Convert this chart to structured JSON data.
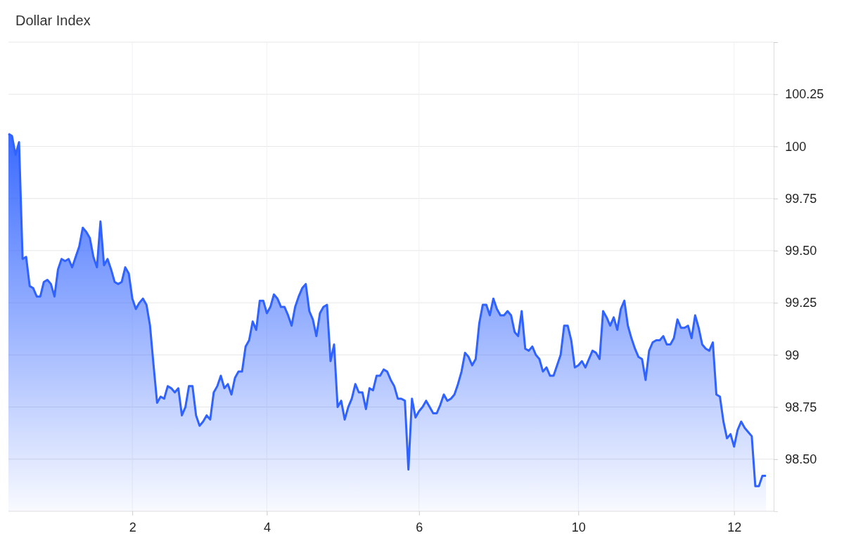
{
  "chart_data": {
    "type": "area",
    "title": "Dollar Index",
    "ylim": [
      98.25,
      100.5
    ],
    "categories": [
      null,
      null,
      null,
      null,
      null,
      null,
      null,
      null,
      null,
      null,
      null,
      null,
      null,
      null,
      null,
      null,
      null,
      null,
      null,
      null,
      null,
      null,
      null,
      null,
      null,
      null,
      null,
      null,
      null,
      null,
      null,
      null,
      null,
      null,
      null,
      "2",
      null,
      null,
      null,
      null,
      null,
      null,
      null,
      null,
      null,
      null,
      null,
      null,
      null,
      null,
      null,
      null,
      null,
      null,
      null,
      null,
      null,
      null,
      null,
      null,
      null,
      null,
      null,
      null,
      null,
      null,
      null,
      null,
      null,
      null,
      null,
      null,
      null,
      "4",
      null,
      null,
      null,
      null,
      null,
      null,
      null,
      null,
      null,
      null,
      null,
      null,
      null,
      null,
      null,
      null,
      null,
      null,
      null,
      null,
      null,
      null,
      null,
      null,
      null,
      null,
      null,
      null,
      null,
      null,
      null,
      null,
      null,
      null,
      null,
      null,
      null,
      null,
      null,
      null,
      null,
      null,
      "6",
      null,
      null,
      null,
      null,
      null,
      null,
      null,
      null,
      null,
      null,
      null,
      null,
      null,
      null,
      null,
      null,
      null,
      null,
      null,
      null,
      null,
      null,
      null,
      null,
      null,
      null,
      null,
      null,
      null,
      null,
      null,
      null,
      null,
      null,
      null,
      null,
      null,
      null,
      null,
      null,
      null,
      null,
      null,
      null,
      "10",
      null,
      null,
      null,
      null,
      null,
      null,
      null,
      null,
      null,
      null,
      null,
      null,
      null,
      null,
      null,
      null,
      null,
      null,
      null,
      null,
      null,
      null,
      null,
      null,
      null,
      null,
      null,
      null,
      null,
      null,
      null,
      null,
      null,
      null,
      null,
      null,
      null,
      null,
      null,
      null,
      null,
      null,
      null,
      "12",
      null,
      null,
      null,
      null,
      null,
      null,
      null,
      null,
      null
    ],
    "yticks": [
      {
        "value": 98.5,
        "label": "98.50"
      },
      {
        "value": 98.75,
        "label": "98.75"
      },
      99,
      {
        "value": 99.25,
        "label": "99.25"
      },
      {
        "value": 99.5,
        "label": "99.50"
      },
      {
        "value": 99.75,
        "label": "99.75"
      },
      100,
      {
        "value": 100.25,
        "label": "100.25"
      },
      {
        "value": 100.5,
        "label": null
      }
    ],
    "grid": true,
    "series": [
      {
        "color": "#2f62ff",
        "values": [
          100.06,
          100.05,
          99.96,
          100.02,
          99.46,
          99.47,
          99.33,
          99.32,
          99.28,
          99.28,
          99.35,
          99.36,
          99.34,
          99.28,
          99.41,
          99.46,
          99.45,
          99.46,
          99.42,
          99.47,
          99.52,
          99.61,
          99.59,
          99.56,
          99.47,
          99.42,
          99.64,
          99.43,
          99.46,
          99.41,
          99.35,
          99.34,
          99.35,
          99.42,
          99.39,
          99.27,
          99.22,
          99.25,
          99.27,
          99.24,
          99.14,
          98.95,
          98.77,
          98.8,
          98.79,
          98.85,
          98.84,
          98.82,
          98.84,
          98.71,
          98.75,
          98.85,
          98.85,
          98.71,
          98.66,
          98.68,
          98.71,
          98.69,
          98.82,
          98.85,
          98.9,
          98.84,
          98.86,
          98.81,
          98.89,
          98.92,
          98.92,
          99.04,
          99.07,
          99.16,
          99.12,
          99.26,
          99.26,
          99.2,
          99.23,
          99.29,
          99.27,
          99.23,
          99.23,
          99.19,
          99.14,
          99.23,
          99.28,
          99.32,
          99.34,
          99.21,
          99.17,
          99.09,
          99.2,
          99.23,
          99.24,
          98.97,
          99.05,
          98.75,
          98.78,
          98.69,
          98.75,
          98.79,
          98.86,
          98.82,
          98.82,
          98.74,
          98.84,
          98.83,
          98.9,
          98.9,
          98.93,
          98.92,
          98.88,
          98.85,
          98.79,
          98.79,
          98.78,
          98.45,
          98.79,
          98.7,
          98.73,
          98.75,
          98.78,
          98.75,
          98.72,
          98.72,
          98.76,
          98.81,
          98.78,
          98.79,
          98.81,
          98.86,
          98.92,
          99.01,
          98.99,
          98.95,
          98.98,
          99.15,
          99.24,
          99.24,
          99.19,
          99.27,
          99.22,
          99.19,
          99.19,
          99.21,
          99.19,
          99.11,
          99.09,
          99.21,
          99.03,
          99.02,
          99.04,
          99.0,
          98.98,
          98.92,
          98.94,
          98.9,
          98.9,
          98.95,
          99.0,
          99.14,
          99.14,
          99.07,
          98.94,
          98.95,
          98.97,
          98.94,
          98.98,
          99.02,
          99.01,
          98.98,
          99.21,
          99.18,
          99.14,
          99.18,
          99.12,
          99.22,
          99.26,
          99.14,
          99.08,
          99.03,
          98.99,
          98.98,
          98.88,
          99.02,
          99.06,
          99.07,
          99.07,
          99.09,
          99.05,
          99.05,
          99.08,
          99.17,
          99.13,
          99.13,
          99.14,
          99.08,
          99.19,
          99.13,
          99.05,
          99.03,
          99.02,
          99.06,
          98.81,
          98.8,
          98.68,
          98.6,
          98.62,
          98.56,
          98.64,
          98.68,
          98.65,
          98.63,
          98.61,
          98.37,
          98.37,
          98.42,
          98.42
        ]
      }
    ]
  }
}
